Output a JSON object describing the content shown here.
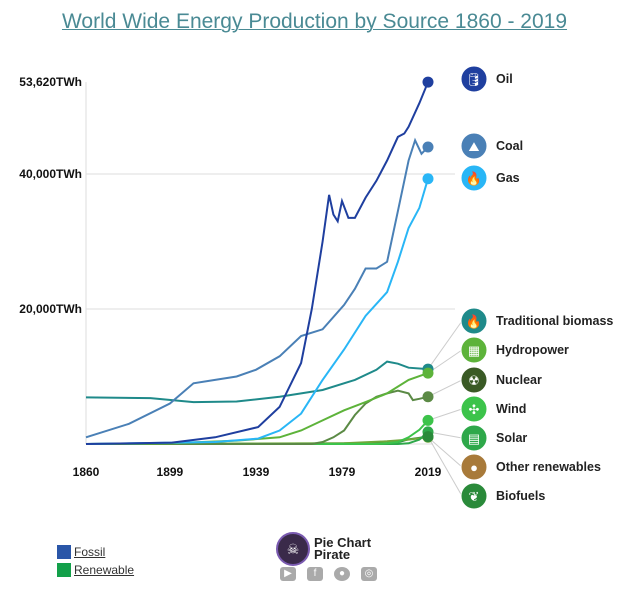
{
  "chart_data": {
    "type": "line",
    "title": "World Wide Energy Production by Source 1860 - 2019",
    "xlim": [
      1860,
      2019
    ],
    "ylim": [
      0,
      53620
    ],
    "x_ticks": [
      "1860",
      "1899",
      "1939",
      "1979",
      "2019"
    ],
    "y_ticks": [
      {
        "value": 20000,
        "label": "20,000TWh"
      },
      {
        "value": 40000,
        "label": "40,000TWh"
      },
      {
        "value": 53620,
        "label": "53,620TWh"
      }
    ],
    "grid": "horizontal",
    "legend_placement": "right",
    "series": [
      {
        "name": "Oil",
        "group": "Fossil",
        "color": "#1f3f9f",
        "icon": "oil-barrel-icon",
        "points": [
          [
            1860,
            0
          ],
          [
            1900,
            200
          ],
          [
            1920,
            1000
          ],
          [
            1940,
            2500
          ],
          [
            1950,
            5500
          ],
          [
            1960,
            12000
          ],
          [
            1965,
            20000
          ],
          [
            1970,
            30000
          ],
          [
            1973,
            36900
          ],
          [
            1975,
            34000
          ],
          [
            1977,
            33000
          ],
          [
            1979,
            36000
          ],
          [
            1982,
            33500
          ],
          [
            1985,
            33500
          ],
          [
            1990,
            36500
          ],
          [
            1995,
            39000
          ],
          [
            2000,
            42000
          ],
          [
            2005,
            45500
          ],
          [
            2008,
            46000
          ],
          [
            2010,
            47000
          ],
          [
            2015,
            50500
          ],
          [
            2019,
            53620
          ]
        ]
      },
      {
        "name": "Coal",
        "group": "Fossil",
        "color": "#4a80b6",
        "icon": "coal-icon",
        "points": [
          [
            1860,
            1000
          ],
          [
            1880,
            3000
          ],
          [
            1899,
            6000
          ],
          [
            1910,
            9000
          ],
          [
            1920,
            9500
          ],
          [
            1930,
            10000
          ],
          [
            1939,
            11000
          ],
          [
            1950,
            13000
          ],
          [
            1960,
            16000
          ],
          [
            1970,
            17000
          ],
          [
            1980,
            20600
          ],
          [
            1985,
            23000
          ],
          [
            1990,
            26000
          ],
          [
            1995,
            26000
          ],
          [
            2000,
            27000
          ],
          [
            2005,
            34500
          ],
          [
            2010,
            42000
          ],
          [
            2013,
            45000
          ],
          [
            2016,
            43000
          ],
          [
            2019,
            44000
          ]
        ]
      },
      {
        "name": "Gas",
        "group": "Fossil",
        "color": "#29b6f6",
        "icon": "flame-icon",
        "points": [
          [
            1860,
            0
          ],
          [
            1920,
            300
          ],
          [
            1940,
            800
          ],
          [
            1950,
            2000
          ],
          [
            1960,
            4500
          ],
          [
            1970,
            9500
          ],
          [
            1980,
            14000
          ],
          [
            1990,
            19000
          ],
          [
            2000,
            22500
          ],
          [
            2005,
            27000
          ],
          [
            2010,
            32000
          ],
          [
            2015,
            35000
          ],
          [
            2019,
            39300
          ]
        ]
      },
      {
        "name": "Traditional biomass",
        "group": "Renewable",
        "color": "#1f8a8a",
        "icon": "campfire-icon",
        "points": [
          [
            1860,
            6900
          ],
          [
            1890,
            6800
          ],
          [
            1910,
            6200
          ],
          [
            1930,
            6300
          ],
          [
            1950,
            7000
          ],
          [
            1970,
            8000
          ],
          [
            1985,
            9500
          ],
          [
            1995,
            11000
          ],
          [
            2000,
            12200
          ],
          [
            2005,
            11900
          ],
          [
            2010,
            11300
          ],
          [
            2019,
            11100
          ]
        ]
      },
      {
        "name": "Hydropower",
        "group": "Renewable",
        "color": "#5db33a",
        "icon": "dam-icon",
        "points": [
          [
            1860,
            0
          ],
          [
            1900,
            100
          ],
          [
            1930,
            500
          ],
          [
            1950,
            1000
          ],
          [
            1960,
            2000
          ],
          [
            1970,
            3500
          ],
          [
            1980,
            5000
          ],
          [
            1990,
            6200
          ],
          [
            2000,
            7500
          ],
          [
            2010,
            9500
          ],
          [
            2019,
            10500
          ]
        ]
      },
      {
        "name": "Nuclear",
        "group": "Renewable",
        "color": "#5b8a45",
        "icon": "radiation-icon",
        "points": [
          [
            1860,
            0
          ],
          [
            1965,
            0
          ],
          [
            1970,
            300
          ],
          [
            1975,
            1000
          ],
          [
            1980,
            2000
          ],
          [
            1985,
            4300
          ],
          [
            1990,
            6000
          ],
          [
            1995,
            7000
          ],
          [
            2000,
            7500
          ],
          [
            2005,
            7900
          ],
          [
            2010,
            7500
          ],
          [
            2012,
            6500
          ],
          [
            2015,
            6700
          ],
          [
            2019,
            7000
          ]
        ]
      },
      {
        "name": "Wind",
        "group": "Renewable",
        "color": "#3cc34a",
        "icon": "wind-turbine-icon",
        "points": [
          [
            1860,
            0
          ],
          [
            1995,
            0
          ],
          [
            2000,
            100
          ],
          [
            2005,
            300
          ],
          [
            2010,
            1000
          ],
          [
            2015,
            2100
          ],
          [
            2019,
            3500
          ]
        ]
      },
      {
        "name": "Solar",
        "group": "Renewable",
        "color": "#2ea84a",
        "icon": "solar-panel-icon",
        "points": [
          [
            1860,
            0
          ],
          [
            2005,
            0
          ],
          [
            2010,
            100
          ],
          [
            2015,
            650
          ],
          [
            2019,
            1800
          ]
        ]
      },
      {
        "name": "Other renewables",
        "group": "Renewable",
        "color": "#6fa83a",
        "icon": "other-renewables-icon",
        "points": [
          [
            1860,
            0
          ],
          [
            1980,
            100
          ],
          [
            1990,
            250
          ],
          [
            2000,
            400
          ],
          [
            2010,
            650
          ],
          [
            2019,
            1000
          ]
        ]
      },
      {
        "name": "Biofuels",
        "group": "Renewable",
        "color": "#2a8a3a",
        "icon": "corn-icon",
        "points": [
          [
            1860,
            0
          ],
          [
            1990,
            100
          ],
          [
            2000,
            150
          ],
          [
            2005,
            250
          ],
          [
            2010,
            700
          ],
          [
            2019,
            1100
          ]
        ]
      }
    ]
  },
  "legend": [
    {
      "label": "Fossil",
      "color": "#2a56a8"
    },
    {
      "label": "Renewable",
      "color": "#13a04a"
    }
  ],
  "brand": {
    "name_line1": "Pie Chart",
    "name_line2": "Pirate",
    "social": [
      "youtube-icon",
      "facebook-icon",
      "reddit-icon",
      "instagram-icon"
    ]
  }
}
